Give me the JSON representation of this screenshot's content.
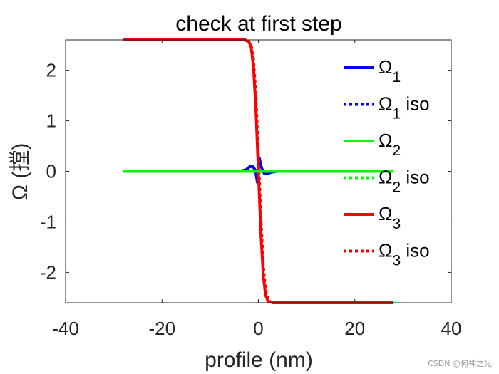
{
  "chart_data": {
    "type": "line",
    "title": "check at first step",
    "xlabel": "profile (nm)",
    "ylabel": "Ω (摚)",
    "xlim": [
      -40,
      40
    ],
    "ylim": [
      -2.6,
      2.6
    ],
    "xticks": [
      "-40",
      "-20",
      "0",
      "20",
      "40"
    ],
    "yticks": [
      "-2",
      "-1",
      "0",
      "1",
      "2"
    ],
    "xtick_values": [
      -40,
      -20,
      0,
      20,
      40
    ],
    "ytick_values": [
      -2,
      -1,
      0,
      1,
      2
    ],
    "legend_location": "right",
    "series": [
      {
        "name": "Ω1",
        "base": "Ω",
        "sub": "1",
        "suffix": "",
        "color": "#0000ff",
        "style": "solid",
        "x": [
          -12,
          -4,
          -2.6,
          -1.8,
          -1.2,
          -0.6,
          -0.2,
          0.2,
          0.6,
          1.2,
          1.8,
          2.6,
          4,
          7
        ],
        "y": [
          0,
          0,
          0.03,
          0.09,
          0.1,
          0.02,
          -0.22,
          0.26,
          0.08,
          -0.04,
          -0.05,
          -0.02,
          0,
          0
        ]
      },
      {
        "name": "Ω1 iso",
        "base": "Ω",
        "sub": "1",
        "suffix": " iso",
        "color": "#0000ff",
        "style": "dotted",
        "x": [
          -12,
          7
        ],
        "y": [
          0,
          0
        ]
      },
      {
        "name": "Ω2",
        "base": "Ω",
        "sub": "2",
        "suffix": "",
        "color": "#00ff00",
        "style": "solid",
        "x": [
          -28,
          28
        ],
        "y": [
          0,
          0
        ]
      },
      {
        "name": "Ω2 iso",
        "base": "Ω",
        "sub": "2",
        "suffix": " iso",
        "color": "#00ff00",
        "style": "dotted",
        "x": [
          -28,
          28
        ],
        "y": [
          0,
          0
        ]
      },
      {
        "name": "Ω3",
        "base": "Ω",
        "sub": "3",
        "suffix": "",
        "color": "#ff0000",
        "style": "solid",
        "x": [
          -28,
          -3,
          -2,
          -1.5,
          -1,
          -0.5,
          0,
          0.5,
          1,
          1.5,
          2,
          3,
          28
        ],
        "y": [
          2.6,
          2.6,
          2.57,
          2.45,
          2.05,
          1.2,
          0,
          -1.2,
          -2.05,
          -2.45,
          -2.57,
          -2.6,
          -2.6
        ]
      },
      {
        "name": "Ω3 iso",
        "base": "Ω",
        "sub": "3",
        "suffix": " iso",
        "color": "#ff0000",
        "style": "dotted",
        "x": [
          -28,
          -2.4,
          -1.5,
          -1,
          -0.5,
          0,
          0.5,
          1,
          1.5,
          2,
          2.5,
          3.4,
          28
        ],
        "y": [
          2.6,
          2.6,
          2.5,
          2.2,
          1.45,
          0.3,
          -0.9,
          -1.85,
          -2.35,
          -2.53,
          -2.58,
          -2.6,
          -2.6
        ]
      }
    ]
  },
  "watermark": "CSDN @何神之光"
}
